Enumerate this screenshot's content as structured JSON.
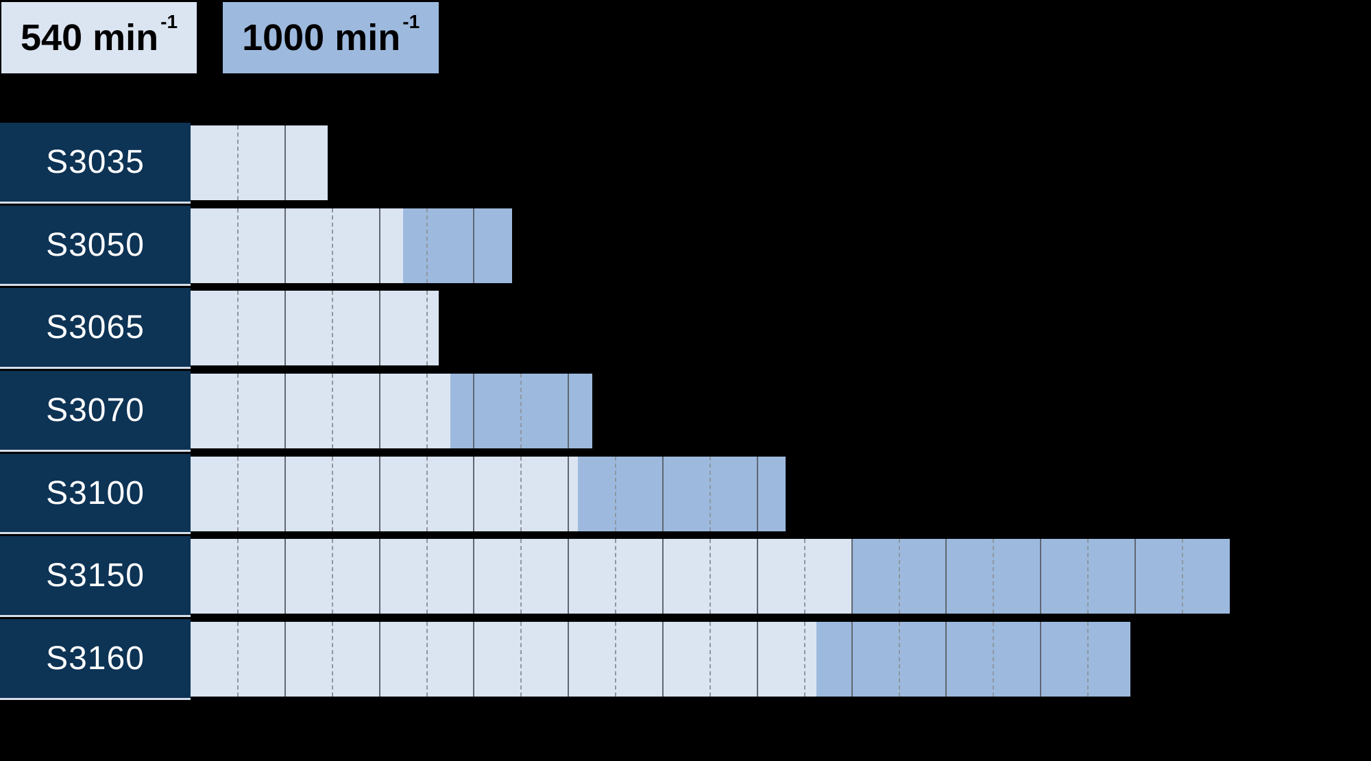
{
  "page": {
    "background": "#000000"
  },
  "legend": {
    "items": [
      {
        "base": "540 min",
        "sup": "-1",
        "key": "rpm540"
      },
      {
        "base": "1000 min",
        "sup": "-1",
        "key": "rpm1000"
      }
    ]
  },
  "colors": {
    "rpm540": "#dbe4f1",
    "rpm1000": "#9dbade",
    "label_box": "#0d3355",
    "label_text": "#ffffff",
    "row_separator": "#d6dee9",
    "gridline_dashed": "#8d96a1",
    "gridline_solid": "#5f6772",
    "background": "#000000",
    "legend_text": "#000000"
  },
  "chart_data": {
    "type": "bar",
    "orientation": "horizontal",
    "title": "",
    "xlabel": "",
    "ylabel": "",
    "categories": [
      "S3035",
      "S3050",
      "S3065",
      "S3070",
      "S3100",
      "S3150",
      "S3160"
    ],
    "series": [
      {
        "name": "540 min-1",
        "role": "value at 540 rpm (light segment, from 0)",
        "values": [
          2.9,
          4.5,
          5.25,
          5.5,
          8.2,
          14,
          13.25
        ]
      },
      {
        "name": "1000 min-1",
        "role": "value at 1000 rpm (medium segment end; null = no 1000 rpm bar)",
        "values": [
          null,
          6.8,
          null,
          8.5,
          12.6,
          22,
          19.9
        ]
      }
    ],
    "value_axis": {
      "unit": "grid divisions (axis unlabeled in image)",
      "range_units": [
        0,
        24
      ],
      "minor_gridline_every": 1,
      "minor_gridline_style": "dashed",
      "major_gridline_every": 2,
      "major_gridline_style": "solid",
      "tick_labels_visible": false
    },
    "legend_position": "top-left",
    "grid": true
  }
}
